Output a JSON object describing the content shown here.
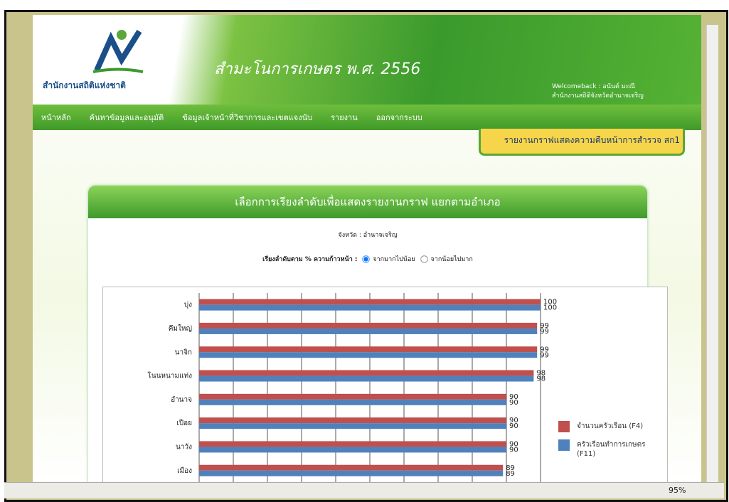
{
  "header": {
    "logo_text": "สำนักงานสถิติแห่งชาติ",
    "title": "สำมะโนการเกษตร พ.ศ. 2556",
    "welcome": "Welcomeback : อนันต์ มะณี",
    "office": "สำนักงานสถิติจังหวัดอำนาจเจริญ"
  },
  "nav": [
    "หน้าหลัก",
    "ค้นหาข้อมูลและอนุมัติ",
    "ข้อมูลเจ้าหน้าที่วิชาการและเขตแจงนับ",
    "รายงาน",
    "ออกจากระบบ"
  ],
  "report_tab": "รายงานกราฟแสดงความคืบหน้าการสำรวจ สก1",
  "panel": {
    "title": "เลือกการเรียงลำดับเพื่อแสดงรายงานกราฟ แยกตามอำเภอ",
    "province": "จังหวัด : อำนาจเจริญ",
    "sort_label": "เรียงลำดับตาม % ความก้าวหน้า :",
    "sort_options": [
      "จากมากไปน้อย",
      "จากน้อยไปมาก"
    ]
  },
  "chart_data": {
    "type": "hbar",
    "categories": [
      "บุ่ง",
      "คึมใหญ่",
      "นาจิก",
      "โนนหนามแท่ง",
      "อำนาจ",
      "เปือย",
      "นาวัง",
      "เมือง"
    ],
    "series": [
      {
        "name": "จำนวนครัวเรือน (F4)",
        "color": "#c0504d",
        "values": [
          100,
          99,
          99,
          98,
          90,
          90,
          90,
          89
        ]
      },
      {
        "name": "ครัวเรือนทำการเกษตร (F11)",
        "color": "#4f81bd",
        "values": [
          100,
          99,
          99,
          98,
          90,
          90,
          90,
          89
        ]
      }
    ],
    "xlim": [
      0,
      100
    ],
    "grid": true
  },
  "status_bar": {
    "zoom": "95%"
  }
}
